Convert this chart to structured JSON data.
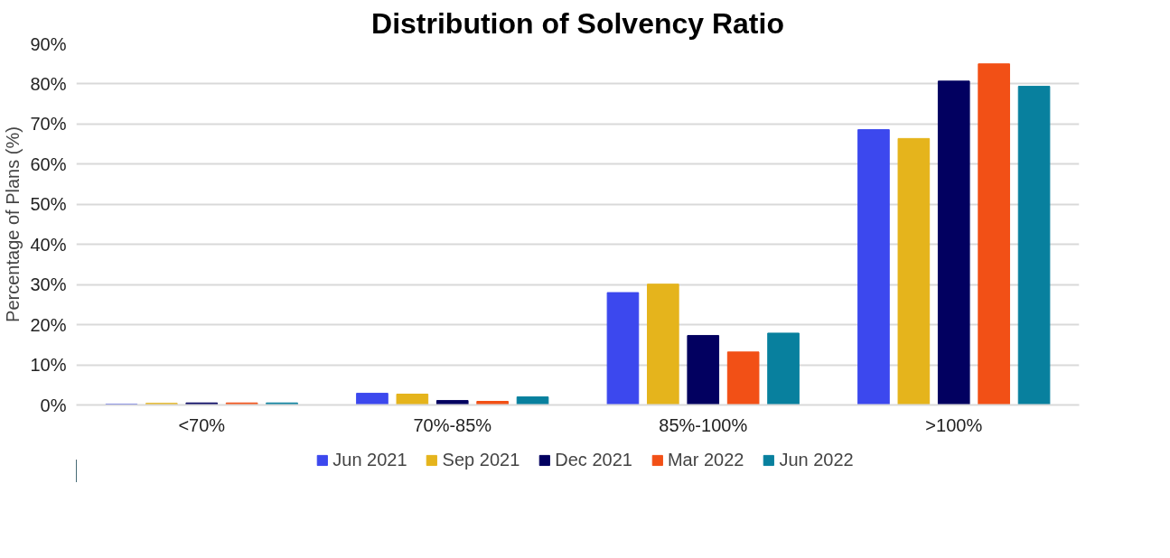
{
  "chart_data": {
    "type": "bar",
    "title": "Distribution of Solvency Ratio",
    "ylabel": "Percentage of Plans (%)",
    "categories": [
      "<70%",
      "70%-85%",
      "85%-100%",
      ">100%"
    ],
    "series": [
      {
        "name": "Jun 2021",
        "color": "#3c48ee",
        "values": [
          0.2,
          2.9,
          28.0,
          68.6
        ]
      },
      {
        "name": "Sep 2021",
        "color": "#e5b41c",
        "values": [
          0.4,
          2.7,
          30.1,
          66.4
        ]
      },
      {
        "name": "Dec 2021",
        "color": "#020060",
        "values": [
          0.5,
          1.1,
          17.3,
          80.7
        ]
      },
      {
        "name": "Mar 2022",
        "color": "#f25016",
        "values": [
          0.5,
          0.9,
          13.2,
          85.0
        ]
      },
      {
        "name": "Jun 2022",
        "color": "#08809e",
        "values": [
          0.5,
          2.0,
          17.9,
          79.4
        ]
      }
    ],
    "ylim": [
      0,
      90
    ],
    "yticks": [
      {
        "value": 0,
        "label": "0%"
      },
      {
        "value": 10,
        "label": "10%"
      },
      {
        "value": 20,
        "label": "20%"
      },
      {
        "value": 30,
        "label": "30%"
      },
      {
        "value": 40,
        "label": "40%"
      },
      {
        "value": 50,
        "label": "50%"
      },
      {
        "value": 60,
        "label": "60%"
      },
      {
        "value": 70,
        "label": "70%"
      },
      {
        "value": 80,
        "label": "80%"
      },
      {
        "value": 90,
        "label": "90%"
      }
    ],
    "grid": "y",
    "legend": "bottom"
  }
}
